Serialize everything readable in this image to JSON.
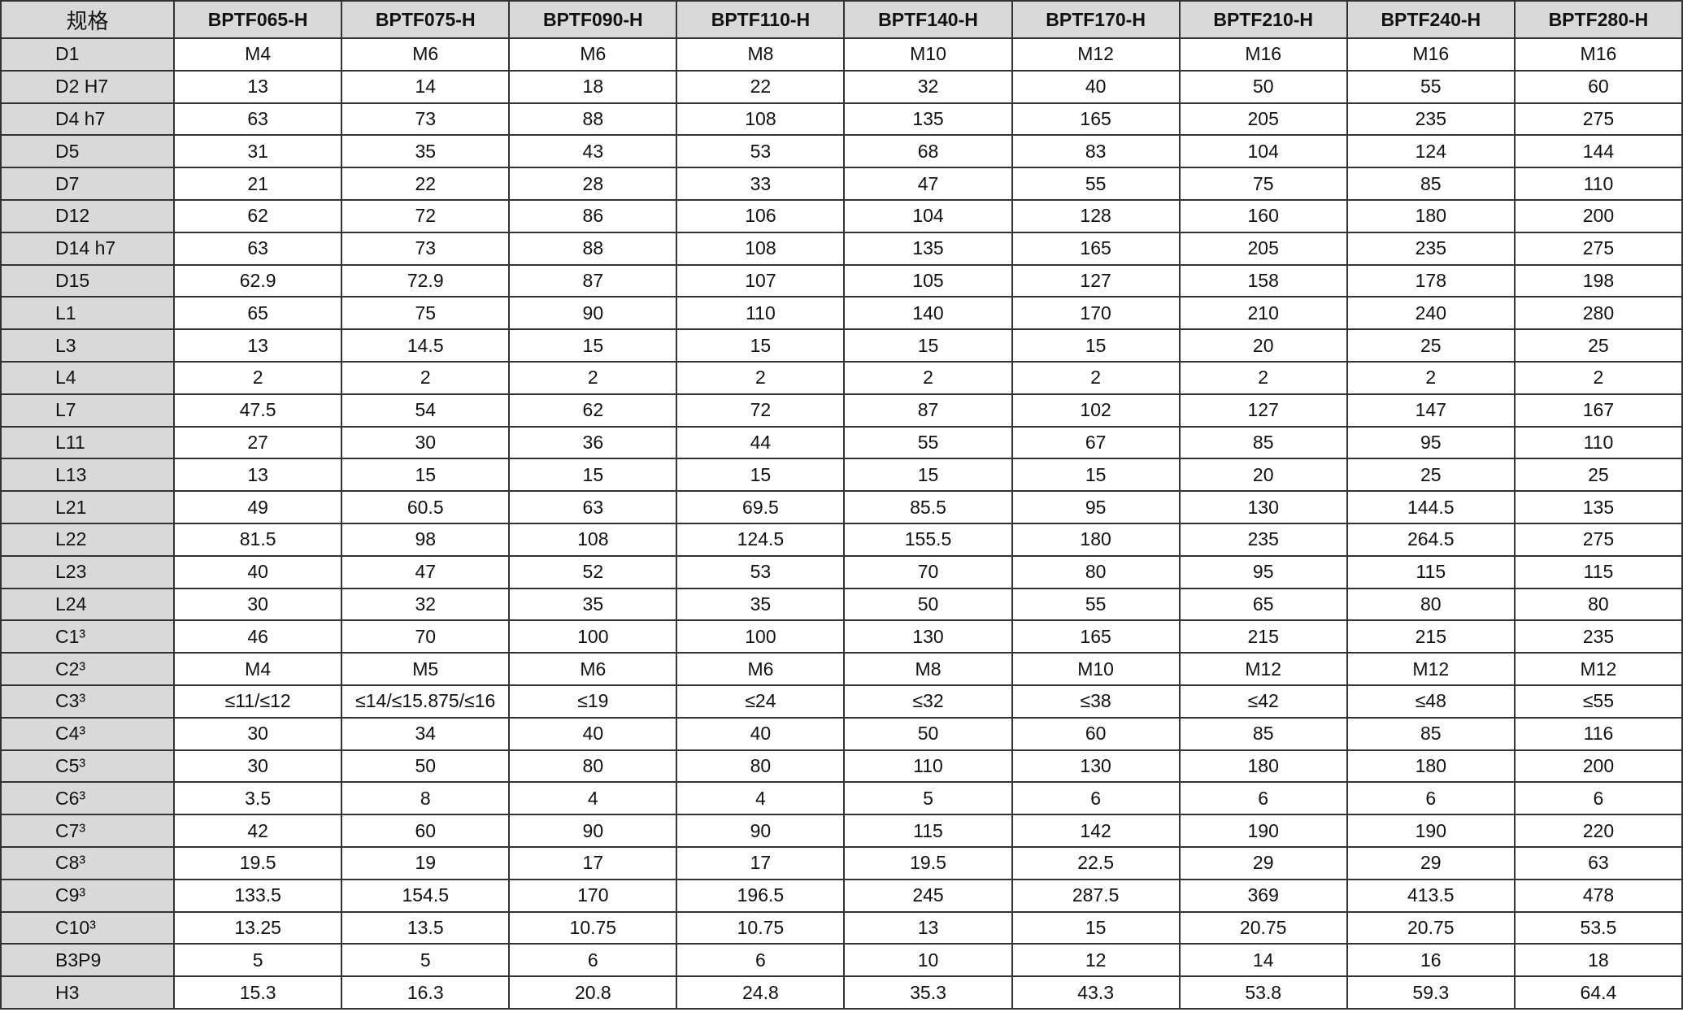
{
  "table": {
    "corner": "规格",
    "columns": [
      "BPTF065-H",
      "BPTF075-H",
      "BPTF090-H",
      "BPTF110-H",
      "BPTF140-H",
      "BPTF170-H",
      "BPTF210-H",
      "BPTF240-H",
      "BPTF280-H"
    ],
    "rows": [
      {
        "label": "D1",
        "values": [
          "M4",
          "M6",
          "M6",
          "M8",
          "M10",
          "M12",
          "M16",
          "M16",
          "M16"
        ]
      },
      {
        "label": "D2 H7",
        "values": [
          "13",
          "14",
          "18",
          "22",
          "32",
          "40",
          "50",
          "55",
          "60"
        ]
      },
      {
        "label": "D4 h7",
        "values": [
          "63",
          "73",
          "88",
          "108",
          "135",
          "165",
          "205",
          "235",
          "275"
        ]
      },
      {
        "label": "D5",
        "values": [
          "31",
          "35",
          "43",
          "53",
          "68",
          "83",
          "104",
          "124",
          "144"
        ]
      },
      {
        "label": "D7",
        "values": [
          "21",
          "22",
          "28",
          "33",
          "47",
          "55",
          "75",
          "85",
          "110"
        ]
      },
      {
        "label": "D12",
        "values": [
          "62",
          "72",
          "86",
          "106",
          "104",
          "128",
          "160",
          "180",
          "200"
        ]
      },
      {
        "label": "D14 h7",
        "values": [
          "63",
          "73",
          "88",
          "108",
          "135",
          "165",
          "205",
          "235",
          "275"
        ]
      },
      {
        "label": "D15",
        "values": [
          "62.9",
          "72.9",
          "87",
          "107",
          "105",
          "127",
          "158",
          "178",
          "198"
        ]
      },
      {
        "label": "L1",
        "values": [
          "65",
          "75",
          "90",
          "110",
          "140",
          "170",
          "210",
          "240",
          "280"
        ]
      },
      {
        "label": "L3",
        "values": [
          "13",
          "14.5",
          "15",
          "15",
          "15",
          "15",
          "20",
          "25",
          "25"
        ]
      },
      {
        "label": "L4",
        "values": [
          "2",
          "2",
          "2",
          "2",
          "2",
          "2",
          "2",
          "2",
          "2"
        ]
      },
      {
        "label": "L7",
        "values": [
          "47.5",
          "54",
          "62",
          "72",
          "87",
          "102",
          "127",
          "147",
          "167"
        ]
      },
      {
        "label": "L11",
        "values": [
          "27",
          "30",
          "36",
          "44",
          "55",
          "67",
          "85",
          "95",
          "110"
        ]
      },
      {
        "label": "L13",
        "values": [
          "13",
          "15",
          "15",
          "15",
          "15",
          "15",
          "20",
          "25",
          "25"
        ]
      },
      {
        "label": "L21",
        "values": [
          "49",
          "60.5",
          "63",
          "69.5",
          "85.5",
          "95",
          "130",
          "144.5",
          "135"
        ]
      },
      {
        "label": "L22",
        "values": [
          "81.5",
          "98",
          "108",
          "124.5",
          "155.5",
          "180",
          "235",
          "264.5",
          "275"
        ]
      },
      {
        "label": "L23",
        "values": [
          "40",
          "47",
          "52",
          "53",
          "70",
          "80",
          "95",
          "115",
          "115"
        ]
      },
      {
        "label": "L24",
        "values": [
          "30",
          "32",
          "35",
          "35",
          "50",
          "55",
          "65",
          "80",
          "80"
        ]
      },
      {
        "label": "C1³",
        "values": [
          "46",
          "70",
          "100",
          "100",
          "130",
          "165",
          "215",
          "215",
          "235"
        ]
      },
      {
        "label": "C2³",
        "values": [
          "M4",
          "M5",
          "M6",
          "M6",
          "M8",
          "M10",
          "M12",
          "M12",
          "M12"
        ]
      },
      {
        "label": "C3³",
        "values": [
          "≤11/≤12",
          "≤14/≤15.875/≤16",
          "≤19",
          "≤24",
          "≤32",
          "≤38",
          "≤42",
          "≤48",
          "≤55"
        ]
      },
      {
        "label": "C4³",
        "values": [
          "30",
          "34",
          "40",
          "40",
          "50",
          "60",
          "85",
          "85",
          "116"
        ]
      },
      {
        "label": "C5³",
        "values": [
          "30",
          "50",
          "80",
          "80",
          "110",
          "130",
          "180",
          "180",
          "200"
        ]
      },
      {
        "label": "C6³",
        "values": [
          "3.5",
          "8",
          "4",
          "4",
          "5",
          "6",
          "6",
          "6",
          "6"
        ]
      },
      {
        "label": "C7³",
        "values": [
          "42",
          "60",
          "90",
          "90",
          "115",
          "142",
          "190",
          "190",
          "220"
        ]
      },
      {
        "label": "C8³",
        "values": [
          "19.5",
          "19",
          "17",
          "17",
          "19.5",
          "22.5",
          "29",
          "29",
          "63"
        ]
      },
      {
        "label": "C9³",
        "values": [
          "133.5",
          "154.5",
          "170",
          "196.5",
          "245",
          "287.5",
          "369",
          "413.5",
          "478"
        ]
      },
      {
        "label": "C10³",
        "values": [
          "13.25",
          "13.5",
          "10.75",
          "10.75",
          "13",
          "15",
          "20.75",
          "20.75",
          "53.5"
        ]
      },
      {
        "label": "B3P9",
        "values": [
          "5",
          "5",
          "6",
          "6",
          "10",
          "12",
          "14",
          "16",
          "18"
        ]
      },
      {
        "label": "H3",
        "values": [
          "15.3",
          "16.3",
          "20.8",
          "24.8",
          "35.3",
          "43.3",
          "53.8",
          "59.3",
          "64.4"
        ]
      }
    ]
  }
}
